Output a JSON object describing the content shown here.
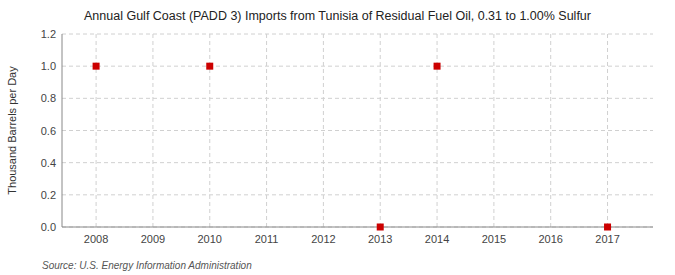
{
  "chart_data": {
    "type": "scatter",
    "title": "Annual Gulf Coast (PADD 3) Imports from Tunisia of Residual Fuel Oil, 0.31 to 1.00% Sulfur",
    "y_label": "Thousand Barrels per Day",
    "source": "Source: U.S. Energy Information Administration",
    "x": [
      2008,
      2010,
      2013,
      2014,
      2017
    ],
    "values": [
      1.0,
      1.0,
      0.0,
      1.0,
      0.0
    ],
    "color": "#cc0000",
    "marker": "square",
    "xlim": [
      2007.4,
      2017.8
    ],
    "ylim": [
      0.0,
      1.2
    ],
    "xticks": [
      2008,
      2009,
      2010,
      2011,
      2012,
      2013,
      2014,
      2015,
      2016,
      2017
    ],
    "yticks": [
      {
        "value": 0.0,
        "label": "0.0"
      },
      0.2,
      0.4,
      0.6,
      0.8,
      {
        "value": 1.0,
        "label": "1.0"
      },
      1.2
    ],
    "grid": true
  }
}
